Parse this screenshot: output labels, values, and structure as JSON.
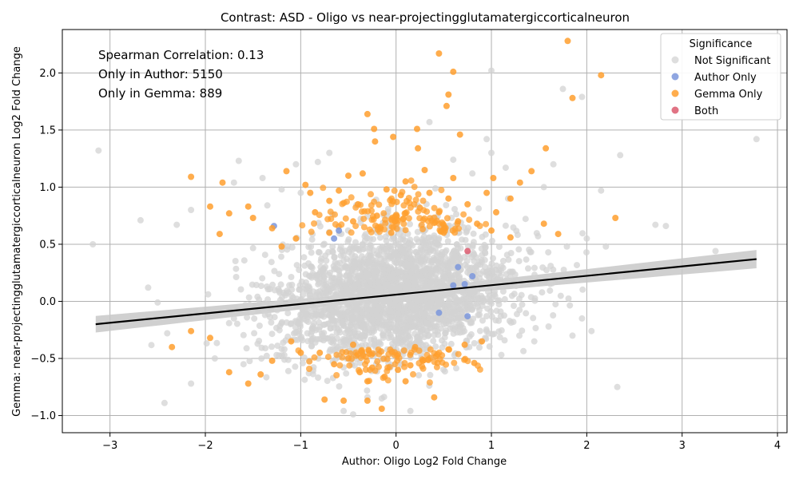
{
  "chart_data": {
    "type": "scatter",
    "title": "Contrast: ASD - Oligo vs near-projectingglutamatergiccorticalneuron",
    "xlabel": "Author: Oligo Log2 Fold Change",
    "ylabel": "Gemma: near-projectingglutamatergiccorticalneuron Log2 Fold Change",
    "xlim": [
      -3.5,
      4.1
    ],
    "ylim": [
      -1.15,
      2.38
    ],
    "x_ticks": [
      "−3",
      "−2",
      "−1",
      "0",
      "1",
      "2",
      "3",
      "4"
    ],
    "y_ticks": [
      "−1.0",
      "−0.5",
      "0.0",
      "0.5",
      "1.0",
      "1.5",
      "2.0"
    ],
    "grid": true,
    "annotations": [
      "Spearman Correlation: 0.13",
      "Only in Author: 5150",
      "Only in Gemma: 889"
    ],
    "legend": {
      "title": "Significance",
      "placement": "top-right",
      "entries": [
        "Not Significant",
        "Author Only",
        "Gemma Only",
        "Both"
      ]
    },
    "regression": {
      "x": [
        -3.15,
        3.78
      ],
      "y": [
        -0.2,
        0.37
      ]
    },
    "colors": {
      "not_significant": "#d3d3d3",
      "author_only": "#7b96dc",
      "gemma_only": "#ff9f2e",
      "both": "#dc5a6e",
      "regression": "#000000",
      "band": "#c8c8c8"
    },
    "series": [
      {
        "name": "Not Significant",
        "points": [
          [
            -3.18,
            0.5
          ],
          [
            -3.12,
            1.32
          ],
          [
            -2.68,
            0.71
          ],
          [
            -2.5,
            -0.01
          ],
          [
            -2.3,
            0.67
          ],
          [
            -2.15,
            -0.72
          ],
          [
            -2.15,
            0.8
          ],
          [
            -1.7,
            1.04
          ],
          [
            -1.7,
            -0.15
          ],
          [
            -1.65,
            1.23
          ],
          [
            -1.4,
            1.08
          ],
          [
            -1.35,
            0.84
          ],
          [
            -1.2,
            0.98
          ],
          [
            -1.05,
            1.2
          ],
          [
            -0.82,
            1.22
          ],
          [
            -0.7,
            1.3
          ],
          [
            -0.55,
            -0.96
          ],
          [
            -0.45,
            -0.99
          ],
          [
            -0.15,
            -0.85
          ],
          [
            0.15,
            -0.96
          ],
          [
            0.35,
            1.57
          ],
          [
            0.95,
            1.42
          ],
          [
            1.0,
            2.02
          ],
          [
            1.0,
            1.3
          ],
          [
            1.15,
            1.17
          ],
          [
            1.55,
            1.0
          ],
          [
            1.65,
            1.2
          ],
          [
            1.75,
            1.86
          ],
          [
            1.95,
            1.79
          ],
          [
            2.0,
            0.55
          ],
          [
            2.15,
            0.97
          ],
          [
            2.2,
            0.48
          ],
          [
            2.35,
            1.28
          ],
          [
            2.35,
            0.22
          ],
          [
            2.32,
            -0.75
          ],
          [
            2.72,
            0.67
          ],
          [
            2.83,
            0.66
          ],
          [
            3.35,
            0.44
          ],
          [
            3.78,
            1.42
          ],
          [
            1.9,
            0.2
          ],
          [
            1.95,
            -0.15
          ],
          [
            2.05,
            -0.26
          ],
          [
            1.85,
            -0.3
          ],
          [
            1.6,
            -0.22
          ],
          [
            1.45,
            -0.35
          ],
          [
            -2.4,
            -0.28
          ],
          [
            -2.6,
            0.12
          ],
          [
            -1.9,
            -0.5
          ],
          [
            -1.6,
            -0.55
          ],
          [
            -1.0,
            0.95
          ],
          [
            0.6,
            1.24
          ],
          [
            0.8,
            1.12
          ]
        ]
      },
      {
        "name": "Author Only",
        "points": [
          [
            -1.28,
            0.66
          ],
          [
            -0.6,
            0.62
          ],
          [
            -0.65,
            0.55
          ],
          [
            0.65,
            0.3
          ],
          [
            0.8,
            0.22
          ],
          [
            0.6,
            0.14
          ],
          [
            0.45,
            -0.1
          ],
          [
            0.75,
            -0.13
          ],
          [
            0.72,
            0.15
          ]
        ]
      },
      {
        "name": "Gemma Only",
        "points": [
          [
            1.8,
            2.28
          ],
          [
            0.45,
            2.17
          ],
          [
            0.6,
            2.01
          ],
          [
            2.15,
            1.98
          ],
          [
            1.85,
            1.78
          ],
          [
            0.55,
            1.81
          ],
          [
            0.53,
            1.71
          ],
          [
            -0.3,
            1.64
          ],
          [
            0.67,
            1.46
          ],
          [
            0.22,
            1.51
          ],
          [
            -0.23,
            1.51
          ],
          [
            -0.22,
            1.4
          ],
          [
            -0.03,
            1.44
          ],
          [
            0.23,
            1.34
          ],
          [
            1.57,
            1.34
          ],
          [
            1.42,
            1.14
          ],
          [
            -2.15,
            1.09
          ],
          [
            -1.82,
            1.04
          ],
          [
            -1.15,
            1.14
          ],
          [
            -0.35,
            1.12
          ],
          [
            1.3,
            1.04
          ],
          [
            -1.95,
            0.83
          ],
          [
            -1.75,
            0.77
          ],
          [
            -1.5,
            0.73
          ],
          [
            -1.3,
            0.64
          ],
          [
            -1.85,
            0.59
          ],
          [
            -1.05,
            0.55
          ],
          [
            2.3,
            0.73
          ],
          [
            1.7,
            0.59
          ],
          [
            1.55,
            0.68
          ],
          [
            1.2,
            0.56
          ],
          [
            -2.35,
            -0.4
          ],
          [
            -2.15,
            -0.26
          ],
          [
            -1.95,
            -0.32
          ],
          [
            -1.75,
            -0.62
          ],
          [
            -1.55,
            -0.72
          ],
          [
            -1.42,
            -0.64
          ],
          [
            -1.3,
            -0.52
          ],
          [
            -0.75,
            -0.86
          ],
          [
            -0.55,
            -0.87
          ],
          [
            -0.3,
            -0.87
          ],
          [
            -0.15,
            -0.94
          ],
          [
            0.4,
            -0.84
          ],
          [
            0.82,
            -0.54
          ],
          [
            0.9,
            -0.35
          ],
          [
            0.72,
            -0.38
          ],
          [
            1.2,
            0.9
          ],
          [
            1.05,
            0.78
          ],
          [
            0.95,
            0.95
          ],
          [
            0.85,
            0.68
          ],
          [
            1.02,
            1.08
          ],
          [
            -0.9,
            0.95
          ],
          [
            -0.85,
            0.78
          ],
          [
            -0.7,
            0.88
          ],
          [
            -0.6,
            0.97
          ],
          [
            -0.45,
            0.7
          ],
          [
            -0.4,
            0.85
          ],
          [
            -0.2,
            0.75
          ],
          [
            -0.1,
            0.98
          ],
          [
            0.05,
            0.93
          ],
          [
            0.25,
            0.82
          ],
          [
            0.35,
            0.95
          ],
          [
            0.45,
            0.78
          ],
          [
            0.55,
            0.9
          ],
          [
            0.65,
            0.7
          ],
          [
            0.75,
            0.85
          ],
          [
            -0.95,
            1.02
          ],
          [
            -0.5,
            1.1
          ],
          [
            0.1,
            1.05
          ],
          [
            0.3,
            1.15
          ],
          [
            0.6,
            1.08
          ],
          [
            -0.8,
            -0.45
          ],
          [
            -0.65,
            -0.55
          ],
          [
            -0.5,
            -0.5
          ],
          [
            -0.38,
            -0.62
          ],
          [
            -0.25,
            -0.58
          ],
          [
            -0.12,
            -0.66
          ],
          [
            0.02,
            -0.6
          ],
          [
            0.15,
            -0.56
          ],
          [
            0.28,
            -0.52
          ],
          [
            0.42,
            -0.48
          ],
          [
            0.55,
            -0.42
          ],
          [
            -0.3,
            -0.7
          ],
          [
            0.1,
            -0.7
          ],
          [
            -1.1,
            -0.35
          ],
          [
            -1.0,
            -0.45
          ],
          [
            1.0,
            0.62
          ],
          [
            -1.2,
            0.48
          ],
          [
            -1.55,
            0.83
          ],
          [
            -0.05,
            0.6
          ],
          [
            0.5,
            0.6
          ],
          [
            -0.7,
            0.6
          ],
          [
            0.2,
            -0.4
          ],
          [
            -0.45,
            -0.38
          ]
        ]
      },
      {
        "name": "Both",
        "points": [
          [
            0.75,
            0.44
          ]
        ]
      }
    ]
  }
}
